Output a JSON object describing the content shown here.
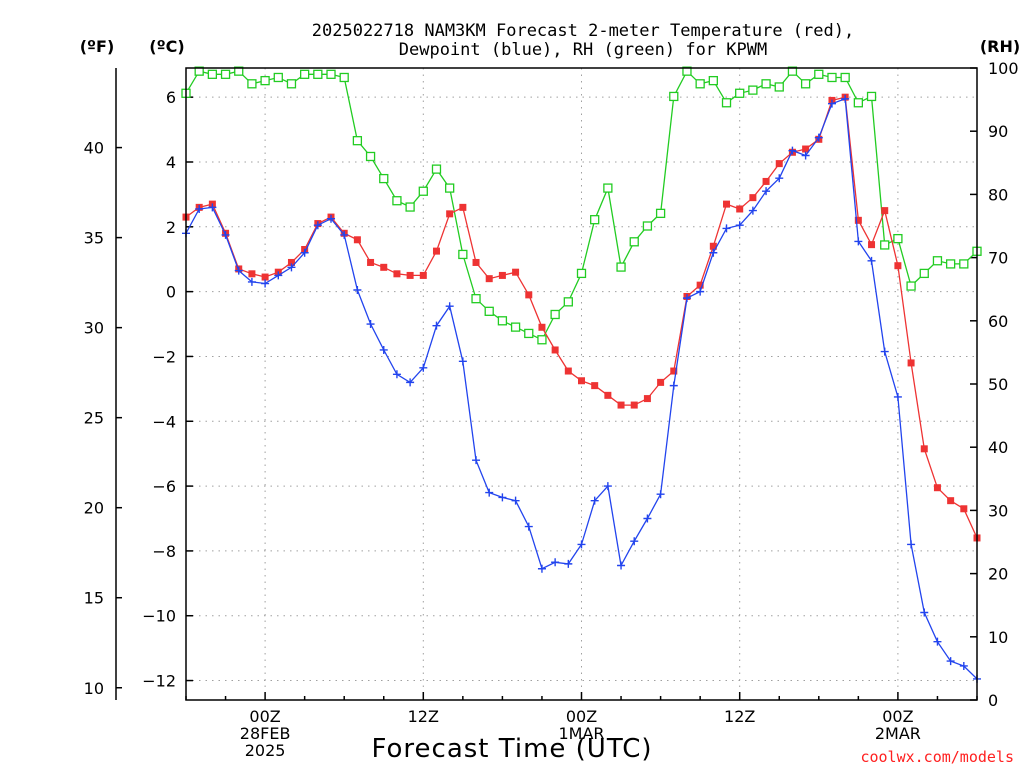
{
  "title_line1": "2025022718 NAM3KM Forecast 2-meter Temperature (red),",
  "title_line2": "Dewpoint (blue), RH (green) for KPWM",
  "unit_f": "(ºF)",
  "unit_c": "(ºC)",
  "unit_rh": "(RH)",
  "x_axis_title": "Forecast Time (UTC)",
  "credit": "coolwx.com/models",
  "colors": {
    "temperature": "#ee3333",
    "dewpoint": "#2244ee",
    "rh": "#22cc22",
    "grid": "#a0a0a0"
  },
  "chart_data": {
    "type": "line",
    "title": "2025022718 NAM3KM Forecast 2-meter Temperature (red), Dewpoint (blue), RH (green) for KPWM",
    "xlabel": "Forecast Time (UTC)",
    "x_unit": "forecast hour (hour 0 = 2025-02-27 18Z)",
    "xlim": [
      0,
      60
    ],
    "x_ticks": [
      {
        "x": 6,
        "lines": [
          "00Z",
          "28FEB",
          "2025"
        ]
      },
      {
        "x": 18,
        "lines": [
          "12Z"
        ]
      },
      {
        "x": 30,
        "lines": [
          "00Z",
          "1MAR"
        ]
      },
      {
        "x": 42,
        "lines": [
          "12Z"
        ]
      },
      {
        "x": 54,
        "lines": [
          "00Z",
          "2MAR"
        ]
      }
    ],
    "ylim_c": [
      -12.6,
      6.9
    ],
    "yticks_c": [
      -12,
      -10,
      -8,
      -6,
      -4,
      -2,
      0,
      2,
      4,
      6
    ],
    "yticks_f": [
      10,
      15,
      20,
      25,
      30,
      35,
      40
    ],
    "ylim_rh": [
      0,
      100
    ],
    "yticks_rh": [
      0,
      10,
      20,
      30,
      40,
      50,
      60,
      70,
      80,
      90,
      100
    ],
    "series": [
      {
        "name": "Temperature",
        "color": "#ee3333",
        "axis": "celsius",
        "marker": "square",
        "values": [
          2.3,
          2.6,
          2.7,
          1.8,
          0.7,
          0.55,
          0.45,
          0.6,
          0.9,
          1.3,
          2.1,
          2.3,
          1.8,
          1.6,
          0.9,
          0.75,
          0.55,
          0.5,
          0.5,
          1.25,
          2.4,
          2.6,
          0.9,
          0.4,
          0.5,
          0.6,
          -0.1,
          -1.1,
          -1.8,
          -2.45,
          -2.75,
          -2.9,
          -3.2,
          -3.5,
          -3.5,
          -3.3,
          -2.8,
          -2.45,
          -0.15,
          0.2,
          1.4,
          2.7,
          2.55,
          2.9,
          3.4,
          3.95,
          4.3,
          4.4,
          4.7,
          5.9,
          6.0,
          2.2,
          1.45,
          2.5,
          0.8,
          -2.2,
          -4.85,
          -6.05,
          -6.45,
          -6.7,
          -7.6
        ]
      },
      {
        "name": "Dewpoint",
        "color": "#2244ee",
        "axis": "celsius",
        "marker": "plus",
        "values": [
          1.8,
          2.55,
          2.6,
          1.75,
          0.65,
          0.3,
          0.25,
          0.5,
          0.75,
          1.2,
          2.05,
          2.25,
          1.75,
          0.05,
          -1.0,
          -1.8,
          -2.55,
          -2.8,
          -2.35,
          -1.05,
          -0.45,
          -2.15,
          -5.2,
          -6.2,
          -6.35,
          -6.45,
          -7.25,
          -8.55,
          -8.35,
          -8.4,
          -7.8,
          -6.45,
          -6.0,
          -8.45,
          -7.7,
          -7.0,
          -6.25,
          -2.9,
          -0.2,
          0.0,
          1.2,
          1.95,
          2.05,
          2.5,
          3.1,
          3.5,
          4.35,
          4.2,
          4.75,
          5.8,
          5.95,
          1.55,
          0.95,
          -1.85,
          -3.25,
          -7.8,
          -9.9,
          -10.8,
          -11.4,
          -11.55,
          -11.95
        ]
      },
      {
        "name": "RH",
        "color": "#22cc22",
        "axis": "rh",
        "marker": "open-square",
        "values": [
          96,
          99.5,
          99,
          99,
          99.5,
          97.5,
          98,
          98.5,
          97.5,
          99,
          99,
          99,
          98.5,
          88.5,
          86,
          82.5,
          79,
          78,
          80.5,
          84,
          81,
          70.5,
          63.5,
          61.5,
          60,
          59,
          58,
          57,
          61,
          63,
          67.5,
          76,
          81,
          68.5,
          72.5,
          75,
          77,
          95.5,
          99.5,
          97.5,
          98,
          94.5,
          96,
          96.5,
          97.5,
          97,
          99.5,
          97.5,
          99,
          98.5,
          98.5,
          94.5,
          95.5,
          72,
          73,
          65.5,
          67.5,
          69.5,
          69,
          69,
          71
        ]
      }
    ]
  }
}
